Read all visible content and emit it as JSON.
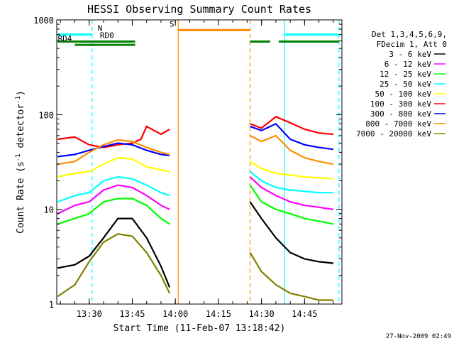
{
  "chart_data": {
    "type": "line",
    "title": "HESSI Observing Summary Count Rates",
    "xlabel": "Start Time (11-Feb-07 13:18:42)",
    "ylabel": "Count Rate (s",
    "ylabel_sup1": "-1",
    "ylabel_mid": " detector",
    "ylabel_sup2": "-1",
    "ylabel_end": ")",
    "ylim": [
      1,
      1000
    ],
    "yscale": "log",
    "xlim": [
      "13:18:42",
      "14:58:00"
    ],
    "x_ticks": [
      "13:30",
      "13:45",
      "14:00",
      "14:15",
      "14:30",
      "14:45"
    ],
    "y_ticks": [
      "1",
      "10",
      "100",
      "1000"
    ],
    "legend_header": [
      "Det 1,3,4,5,6,9,",
      "FDecim 1, Att 0"
    ],
    "legend_placement": "right",
    "series": [
      {
        "name": "3 - 6 keV",
        "color": "#000000",
        "points": [
          [
            "13:19",
            2.4
          ],
          [
            "13:25",
            2.6
          ],
          [
            "13:30",
            3.2
          ],
          [
            "13:35",
            5
          ],
          [
            "13:40",
            8
          ],
          [
            "13:45",
            8
          ],
          [
            "13:50",
            5
          ],
          [
            "13:55",
            2.5
          ],
          [
            "13:58",
            1.5
          ],
          [
            "14:26",
            12
          ],
          [
            "14:30",
            8
          ],
          [
            "14:35",
            5
          ],
          [
            "14:40",
            3.5
          ],
          [
            "14:45",
            3
          ],
          [
            "14:50",
            2.8
          ],
          [
            "14:55",
            2.7
          ]
        ]
      },
      {
        "name": "6 - 12 keV",
        "color": "#ff00ff",
        "points": [
          [
            "13:19",
            9
          ],
          [
            "13:25",
            11
          ],
          [
            "13:30",
            12
          ],
          [
            "13:35",
            16
          ],
          [
            "13:40",
            18
          ],
          [
            "13:45",
            17
          ],
          [
            "13:50",
            14
          ],
          [
            "13:55",
            11
          ],
          [
            "13:58",
            10
          ],
          [
            "14:26",
            22
          ],
          [
            "14:30",
            17
          ],
          [
            "14:35",
            14
          ],
          [
            "14:40",
            12
          ],
          [
            "14:45",
            11
          ],
          [
            "14:50",
            10.5
          ],
          [
            "14:55",
            10
          ]
        ]
      },
      {
        "name": "12 - 25 keV",
        "color": "#00ff00",
        "points": [
          [
            "13:19",
            7
          ],
          [
            "13:25",
            8
          ],
          [
            "13:30",
            9
          ],
          [
            "13:35",
            12
          ],
          [
            "13:40",
            13
          ],
          [
            "13:45",
            13
          ],
          [
            "13:50",
            11
          ],
          [
            "13:55",
            8
          ],
          [
            "13:58",
            7
          ],
          [
            "14:26",
            18
          ],
          [
            "14:30",
            12
          ],
          [
            "14:35",
            10
          ],
          [
            "14:40",
            9
          ],
          [
            "14:45",
            8
          ],
          [
            "14:50",
            7.5
          ],
          [
            "14:55",
            7
          ]
        ]
      },
      {
        "name": "25 - 50 keV",
        "color": "#00ffff",
        "points": [
          [
            "13:19",
            12
          ],
          [
            "13:25",
            14
          ],
          [
            "13:30",
            15
          ],
          [
            "13:35",
            20
          ],
          [
            "13:40",
            22
          ],
          [
            "13:45",
            21
          ],
          [
            "13:50",
            18
          ],
          [
            "13:55",
            15
          ],
          [
            "13:58",
            14
          ],
          [
            "14:26",
            25
          ],
          [
            "14:30",
            20
          ],
          [
            "14:35",
            17
          ],
          [
            "14:40",
            16
          ],
          [
            "14:45",
            15.5
          ],
          [
            "14:50",
            15
          ],
          [
            "14:55",
            15
          ]
        ]
      },
      {
        "name": "50 - 100 keV",
        "color": "#ffff00",
        "points": [
          [
            "13:19",
            22
          ],
          [
            "13:25",
            24
          ],
          [
            "13:30",
            25
          ],
          [
            "13:35",
            30
          ],
          [
            "13:40",
            35
          ],
          [
            "13:45",
            34
          ],
          [
            "13:50",
            28
          ],
          [
            "13:55",
            26
          ],
          [
            "13:58",
            25
          ],
          [
            "14:26",
            32
          ],
          [
            "14:30",
            27
          ],
          [
            "14:35",
            24
          ],
          [
            "14:40",
            23
          ],
          [
            "14:45",
            22
          ],
          [
            "14:50",
            21.5
          ],
          [
            "14:55",
            21
          ]
        ]
      },
      {
        "name": "100 - 300 keV",
        "color": "#ff0000",
        "points": [
          [
            "13:19",
            55
          ],
          [
            "13:25",
            58
          ],
          [
            "13:30",
            48
          ],
          [
            "13:35",
            45
          ],
          [
            "13:40",
            48
          ],
          [
            "13:45",
            50
          ],
          [
            "13:48",
            55
          ],
          [
            "13:50",
            75
          ],
          [
            "13:55",
            62
          ],
          [
            "13:58",
            70
          ],
          [
            "14:26",
            80
          ],
          [
            "14:30",
            72
          ],
          [
            "14:35",
            95
          ],
          [
            "14:40",
            82
          ],
          [
            "14:45",
            70
          ],
          [
            "14:50",
            64
          ],
          [
            "14:55",
            62
          ]
        ]
      },
      {
        "name": "300 - 800 keV",
        "color": "#0000ff",
        "points": [
          [
            "13:19",
            36
          ],
          [
            "13:25",
            38
          ],
          [
            "13:30",
            42
          ],
          [
            "13:35",
            46
          ],
          [
            "13:40",
            50
          ],
          [
            "13:45",
            48
          ],
          [
            "13:50",
            42
          ],
          [
            "13:55",
            38
          ],
          [
            "13:58",
            37
          ],
          [
            "14:26",
            75
          ],
          [
            "14:30",
            68
          ],
          [
            "14:35",
            80
          ],
          [
            "14:40",
            55
          ],
          [
            "14:45",
            48
          ],
          [
            "14:50",
            45
          ],
          [
            "14:55",
            43
          ]
        ]
      },
      {
        "name": "800 - 7000 keV",
        "color": "#ff8c00",
        "points": [
          [
            "13:19",
            30
          ],
          [
            "13:25",
            32
          ],
          [
            "13:30",
            40
          ],
          [
            "13:35",
            48
          ],
          [
            "13:40",
            54
          ],
          [
            "13:45",
            52
          ],
          [
            "13:50",
            45
          ],
          [
            "13:55",
            40
          ],
          [
            "13:58",
            38
          ],
          [
            "14:26",
            60
          ],
          [
            "14:30",
            52
          ],
          [
            "14:35",
            60
          ],
          [
            "14:40",
            42
          ],
          [
            "14:45",
            35
          ],
          [
            "14:50",
            32
          ],
          [
            "14:55",
            30
          ]
        ]
      },
      {
        "name": "7000 - 20000 keV",
        "color": "#808000",
        "points": [
          [
            "13:19",
            1.2
          ],
          [
            "13:25",
            1.6
          ],
          [
            "13:30",
            2.8
          ],
          [
            "13:35",
            4.5
          ],
          [
            "13:40",
            5.5
          ],
          [
            "13:45",
            5.2
          ],
          [
            "13:50",
            3.5
          ],
          [
            "13:55",
            2
          ],
          [
            "13:58",
            1.3
          ],
          [
            "14:26",
            3.5
          ],
          [
            "14:30",
            2.2
          ],
          [
            "14:35",
            1.6
          ],
          [
            "14:40",
            1.3
          ],
          [
            "14:45",
            1.2
          ],
          [
            "14:50",
            1.1
          ],
          [
            "14:55",
            1.1
          ]
        ]
      }
    ],
    "flags": [
      {
        "label": "N",
        "color": "#00ffff",
        "segments": [
          [
            "13:19",
            "13:31"
          ],
          [
            "14:38",
            "14:57"
          ]
        ],
        "level": 700
      },
      {
        "label": "S",
        "color": "#ff8c00",
        "segments": [
          [
            "14:01",
            "14:26"
          ]
        ],
        "level": 780
      },
      {
        "label": "RD0",
        "color": "#008000",
        "segments": [
          [
            "13:19",
            "13:46"
          ],
          [
            "14:26",
            "14:33"
          ],
          [
            "14:36",
            "14:57"
          ]
        ],
        "level": 590
      },
      {
        "label": "RD4",
        "color": "#008000",
        "segments": [
          [
            "13:25",
            "13:46"
          ]
        ],
        "level": 545
      }
    ],
    "vertical_lines": [
      {
        "time": "13:31",
        "color": "#00ffff",
        "style": "dashed"
      },
      {
        "time": "14:01",
        "color": "#ff8c00",
        "style": "solid"
      },
      {
        "time": "14:26",
        "color": "#ff8c00",
        "style": "dashed"
      },
      {
        "time": "14:38",
        "color": "#00ffff",
        "style": "solid"
      },
      {
        "time": "14:57",
        "color": "#00ffff",
        "style": "dashed"
      }
    ],
    "timestamp": "27-Nov-2009 02:49"
  }
}
